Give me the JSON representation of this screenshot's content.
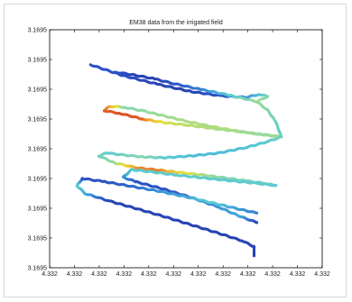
{
  "chart_data": {
    "type": "scatter",
    "title": "EM38 data from the irrigated field",
    "xlabel": "",
    "ylabel": "",
    "x_tick_labels": [
      "4.332",
      "4.332",
      "4.332",
      "4.332",
      "4.332",
      "4.332",
      "4.332",
      "4.332",
      "4.332",
      "4.332",
      "4.332",
      "4.332"
    ],
    "y_tick_labels": [
      "3.1695",
      "3.1695",
      "3.1695",
      "3.1695",
      "3.1695",
      "3.1695",
      "3.1695",
      "3.1695",
      "3.1695"
    ],
    "colormap": [
      "#1f2f8f",
      "#2b4fc4",
      "#3a8fd8",
      "#55c8d6",
      "#8fd9a8",
      "#e5e23a",
      "#f0b030",
      "#d83a20"
    ],
    "grid": false,
    "legend": "none",
    "xlim": [
      0,
      1
    ],
    "ylim": [
      0,
      1
    ],
    "passes": [
      {
        "x": [
          0.15,
          0.27,
          0.4,
          0.52,
          0.63,
          0.72,
          0.77,
          0.8,
          0.76
        ],
        "y": [
          0.853,
          0.807,
          0.77,
          0.74,
          0.722,
          0.716,
          0.729,
          0.72,
          0.698
        ],
        "v": [
          0.15,
          0.15,
          0.1,
          0.1,
          0.15,
          0.3,
          0.4,
          0.55,
          0.6
        ]
      },
      {
        "x": [
          0.76,
          0.66,
          0.55,
          0.45,
          0.38,
          0.3,
          0.24
        ],
        "y": [
          0.698,
          0.725,
          0.75,
          0.775,
          0.795,
          0.812,
          0.822
        ],
        "v": [
          0.6,
          0.45,
          0.25,
          0.15,
          0.1,
          0.1,
          0.15
        ]
      },
      {
        "x": [
          0.76,
          0.8,
          0.83,
          0.85
        ],
        "y": [
          0.698,
          0.662,
          0.612,
          0.55
        ],
        "v": [
          0.6,
          0.55,
          0.5,
          0.45
        ]
      },
      {
        "x": [
          0.85,
          0.72,
          0.6,
          0.5,
          0.42,
          0.34,
          0.27,
          0.22,
          0.2,
          0.26,
          0.34,
          0.42,
          0.5,
          0.6,
          0.7,
          0.78,
          0.85
        ],
        "y": [
          0.55,
          0.568,
          0.592,
          0.616,
          0.638,
          0.66,
          0.675,
          0.678,
          0.66,
          0.648,
          0.625,
          0.61,
          0.6,
          0.585,
          0.572,
          0.56,
          0.55
        ],
        "v": [
          0.6,
          0.62,
          0.63,
          0.62,
          0.6,
          0.58,
          0.55,
          0.85,
          0.95,
          0.98,
          0.95,
          0.7,
          0.65,
          0.62,
          0.6,
          0.58,
          0.6
        ]
      },
      {
        "x": [
          0.85,
          0.8,
          0.72,
          0.62,
          0.52,
          0.42,
          0.34,
          0.27,
          0.21,
          0.18,
          0.24,
          0.32,
          0.4,
          0.48,
          0.56,
          0.64,
          0.72,
          0.79,
          0.83
        ],
        "y": [
          0.55,
          0.53,
          0.505,
          0.482,
          0.47,
          0.462,
          0.466,
          0.474,
          0.482,
          0.47,
          0.44,
          0.42,
          0.41,
          0.4,
          0.39,
          0.378,
          0.365,
          0.355,
          0.345
        ],
        "v": [
          0.5,
          0.45,
          0.42,
          0.4,
          0.4,
          0.45,
          0.55,
          0.5,
          0.45,
          0.5,
          0.6,
          0.9,
          0.92,
          0.75,
          0.62,
          0.55,
          0.52,
          0.5,
          0.48
        ]
      },
      {
        "x": [
          0.83,
          0.76,
          0.66,
          0.56,
          0.46,
          0.38,
          0.3,
          0.27,
          0.32,
          0.42,
          0.52,
          0.62,
          0.7,
          0.76
        ],
        "y": [
          0.345,
          0.355,
          0.366,
          0.378,
          0.39,
          0.402,
          0.412,
          0.38,
          0.36,
          0.33,
          0.295,
          0.255,
          0.215,
          0.19
        ],
        "v": [
          0.45,
          0.45,
          0.45,
          0.45,
          0.45,
          0.45,
          0.45,
          0.3,
          0.15,
          0.15,
          0.2,
          0.3,
          0.35,
          0.1
        ]
      },
      {
        "x": [
          0.12,
          0.1,
          0.13,
          0.22,
          0.32,
          0.42,
          0.52,
          0.62,
          0.71,
          0.75,
          0.75
        ],
        "y": [
          0.375,
          0.345,
          0.312,
          0.28,
          0.248,
          0.215,
          0.18,
          0.145,
          0.112,
          0.088,
          0.05
        ],
        "v": [
          0.15,
          0.45,
          0.35,
          0.1,
          0.1,
          0.1,
          0.1,
          0.1,
          0.1,
          0.1,
          0.1
        ]
      },
      {
        "x": [
          0.12,
          0.2,
          0.3,
          0.4,
          0.5,
          0.6,
          0.7,
          0.76
        ],
        "y": [
          0.375,
          0.362,
          0.342,
          0.322,
          0.298,
          0.272,
          0.245,
          0.23
        ],
        "v": [
          0.15,
          0.15,
          0.2,
          0.3,
          0.35,
          0.45,
          0.3,
          0.25
        ]
      }
    ]
  }
}
